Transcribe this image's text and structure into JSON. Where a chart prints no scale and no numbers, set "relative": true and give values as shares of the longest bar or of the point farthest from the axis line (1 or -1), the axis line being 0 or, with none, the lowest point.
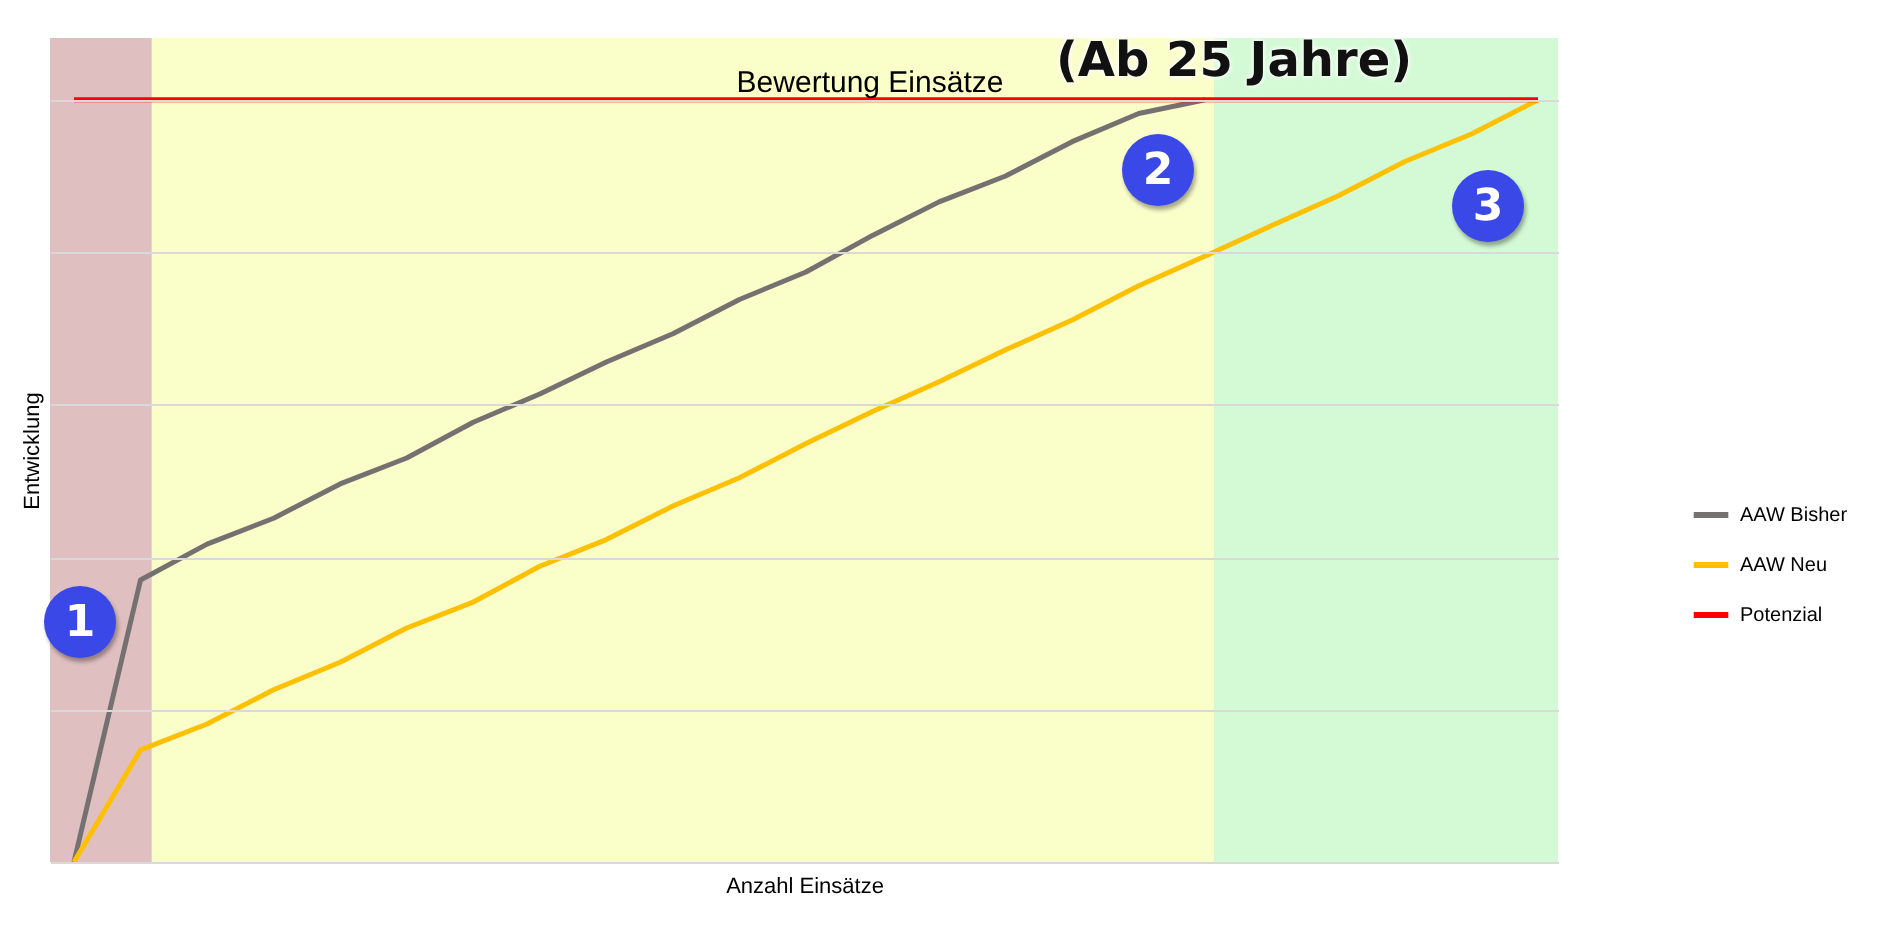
{
  "chart_data": {
    "type": "line",
    "title": "Bewertung Einsätze",
    "xlabel": "Anzahl Einsätze",
    "ylabel": "Entwicklung",
    "relative": true,
    "grid": "y",
    "legend": "right",
    "line_style": "solid",
    "categories": [
      null,
      null,
      null,
      null,
      null,
      null,
      null,
      null,
      null,
      null,
      null,
      null,
      null,
      null,
      null,
      null,
      null,
      null,
      null,
      null,
      null,
      null,
      null
    ],
    "series": [
      {
        "name": "AAW Bisher",
        "color": "#767171",
        "values": [
          0,
          0.37,
          0.417,
          0.451,
          0.496,
          0.53,
          0.577,
          0.614,
          0.656,
          0.693,
          0.738,
          0.774,
          0.822,
          0.866,
          0.9,
          0.945,
          0.982,
          1,
          null,
          null,
          null,
          null,
          null
        ]
      },
      {
        "name": "AAW Neu",
        "color": "#ffc000",
        "values": [
          0,
          0.147,
          0.181,
          0.226,
          0.262,
          0.307,
          0.341,
          0.388,
          0.423,
          0.467,
          0.504,
          0.549,
          0.591,
          0.63,
          0.672,
          0.711,
          0.756,
          0.795,
          0.835,
          0.874,
          0.919,
          0.955,
          1
        ]
      },
      {
        "name": "Potenzial",
        "color": "#ff0000",
        "values": [
          1,
          1,
          1,
          1,
          1,
          1,
          1,
          1,
          1,
          1,
          1,
          1,
          1,
          1,
          1,
          1,
          1,
          1,
          1,
          1,
          1,
          1,
          1
        ]
      }
    ],
    "annotations": [
      "(Ab 25 Jahre)",
      "1",
      "2",
      "3"
    ]
  }
}
